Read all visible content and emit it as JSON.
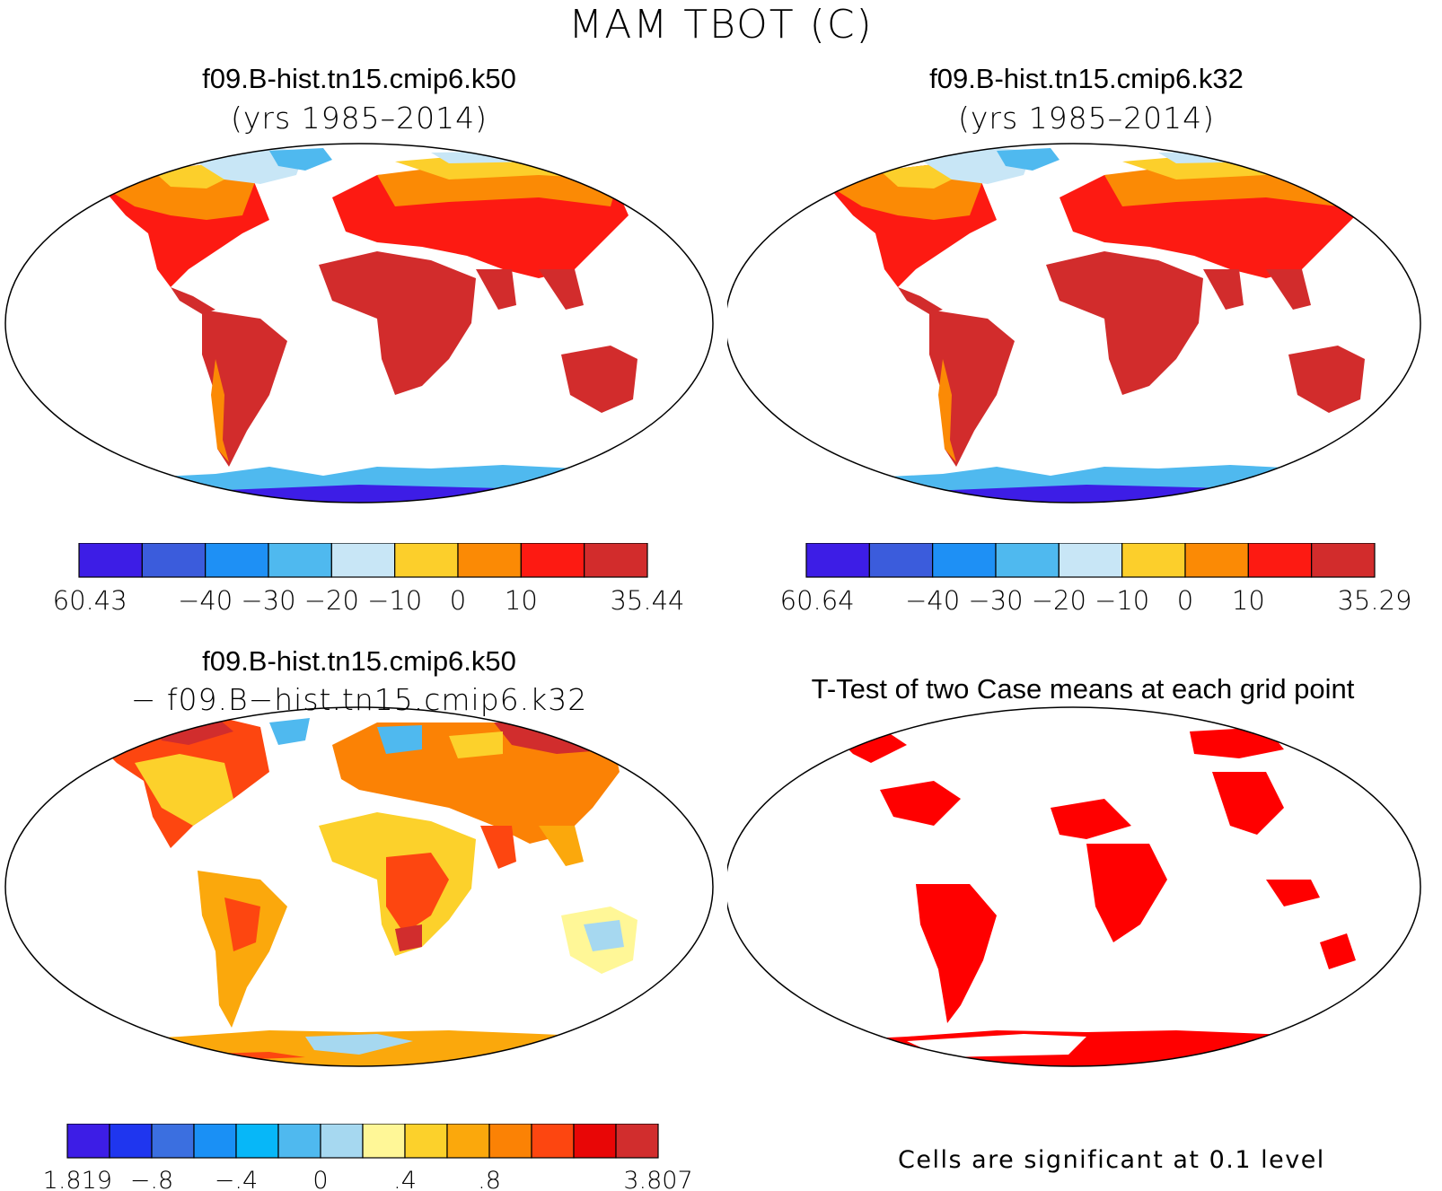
{
  "title": "MAM TBOT (C)",
  "panels": [
    {
      "title": "f09.B-hist.tn15.cmip6.k50",
      "subtitle": "(yrs 1985–2014)",
      "colorbar": {
        "colors": [
          "#3d1de6",
          "#3b5cdc",
          "#1e90f5",
          "#4fb9ef",
          "#c8e6f6",
          "#fccf2b",
          "#fb8a05",
          "#fd1a12",
          "#d22c2c"
        ],
        "labels": [
          "−60.43",
          "−40",
          "−30",
          "−20",
          "−10",
          "0",
          "10",
          "35.44"
        ],
        "label_boundaries": [
          0,
          2,
          3,
          4,
          5,
          6,
          7,
          9
        ]
      }
    },
    {
      "title": "f09.B-hist.tn15.cmip6.k32",
      "subtitle": "(yrs 1985–2014)",
      "colorbar": {
        "colors": [
          "#3d1de6",
          "#3b5cdc",
          "#1e90f5",
          "#4fb9ef",
          "#c8e6f6",
          "#fccf2b",
          "#fb8a05",
          "#fd1a12",
          "#d22c2c"
        ],
        "labels": [
          "−60.64",
          "−40",
          "−30",
          "−20",
          "−10",
          "0",
          "10",
          "35.29"
        ],
        "label_boundaries": [
          0,
          2,
          3,
          4,
          5,
          6,
          7,
          9
        ]
      }
    },
    {
      "title": "f09.B-hist.tn15.cmip6.k50",
      "subtitle": "− f09.B−hist.tn15.cmip6.k32",
      "colorbar": {
        "colors": [
          "#3d1de6",
          "#1f36ef",
          "#3b6fe0",
          "#1a90f5",
          "#07b7f8",
          "#4fb9ef",
          "#a6d8f0",
          "#fff797",
          "#fcd12b",
          "#fba80c",
          "#fb8205",
          "#fd4610",
          "#e80606",
          "#d12d2d"
        ],
        "labels": [
          "−1.819",
          "−.8",
          "−.4",
          "0",
          ".4",
          ".8",
          "3.807"
        ],
        "label_boundaries": [
          0,
          2,
          4,
          6,
          8,
          10,
          14
        ]
      }
    },
    {
      "title": "T-Test of two Case means at each grid point",
      "note": "Cells are significant at 0.1 level",
      "significant_color": "#ff0000"
    }
  ]
}
